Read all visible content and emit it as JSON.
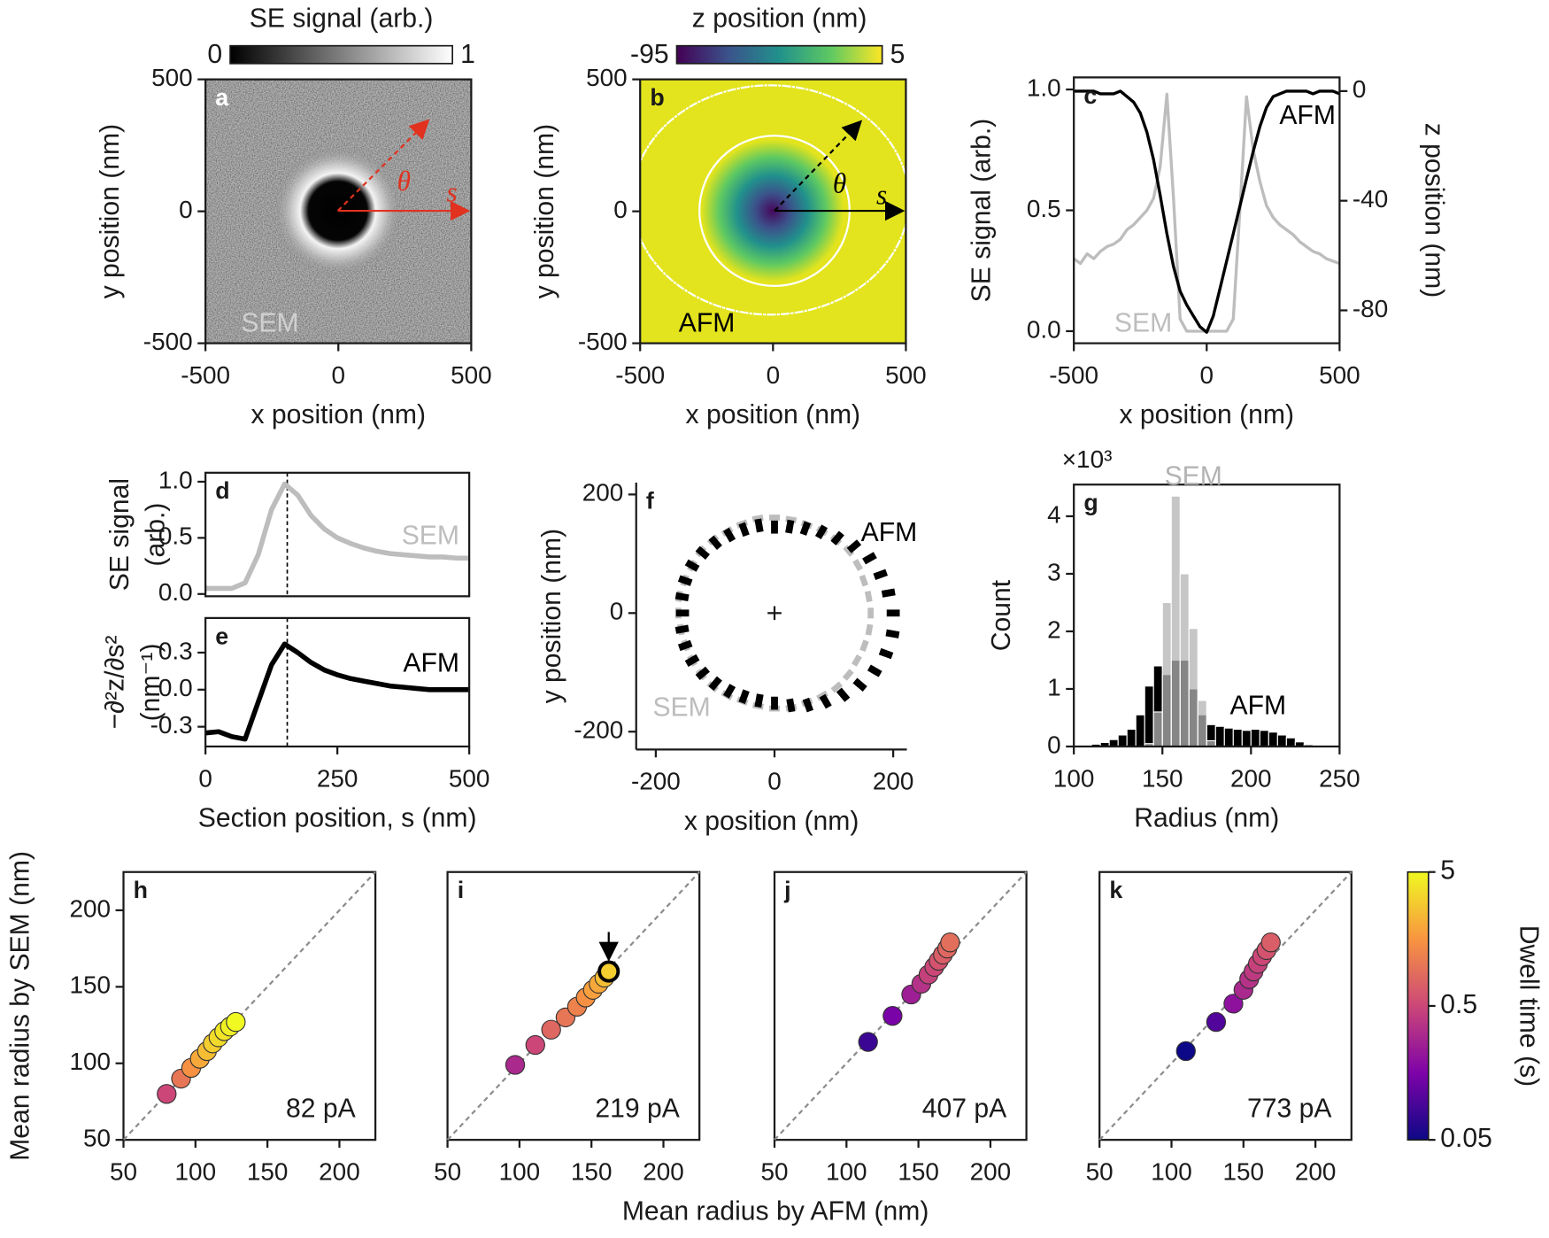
{
  "chart_data": [
    {
      "type": "heatmap",
      "panel_label": "a",
      "colormap": "gray",
      "colorbar": {
        "label": "SE signal (arb.)",
        "lim": [
          0,
          1
        ],
        "ticks": [
          0,
          1
        ]
      },
      "xlabel": "x position (nm)",
      "ylabel": "y position (nm)",
      "xlim": [
        -500,
        500
      ],
      "ylim": [
        -500,
        500
      ],
      "xticks": [
        -500,
        0,
        500
      ],
      "yticks": [
        -500,
        0,
        500
      ],
      "annotations": [
        "θ",
        "s",
        "SEM"
      ]
    },
    {
      "type": "heatmap",
      "panel_label": "b",
      "colormap": "viridis",
      "colorbar": {
        "label": "z position (nm)",
        "lim": [
          -95,
          5
        ],
        "ticks": [
          -95,
          5
        ]
      },
      "xlabel": "x position (nm)",
      "ylabel": "y position (nm)",
      "xlim": [
        -500,
        500
      ],
      "ylim": [
        -500,
        500
      ],
      "xticks": [
        -500,
        0,
        500
      ],
      "yticks": [
        -500,
        0,
        500
      ],
      "annotations": [
        "θ",
        "s",
        "AFM"
      ]
    },
    {
      "type": "line",
      "panel_label": "c",
      "x": [
        -500,
        -475,
        -450,
        -425,
        -400,
        -375,
        -350,
        -325,
        -300,
        -275,
        -250,
        -225,
        -200,
        -175,
        -150,
        -125,
        -100,
        -75,
        -50,
        -25,
        0,
        25,
        50,
        75,
        100,
        125,
        150,
        175,
        200,
        225,
        250,
        275,
        300,
        325,
        350,
        375,
        400,
        425,
        450,
        475,
        500
      ],
      "xlim": [
        -500,
        500
      ],
      "xticks": [
        -500,
        0,
        500
      ],
      "xlabel": "x position (nm)",
      "ylabel": "SE signal (arb.)",
      "ylim": [
        -0.05,
        1.05
      ],
      "yticks": [
        {
          "value": 0,
          "label": "0.0"
        },
        0.5,
        {
          "value": 1,
          "label": "1.0"
        }
      ],
      "y2label": "z position (nm)",
      "y2lim": [
        -92,
        5
      ],
      "y2ticks": [
        0,
        -40,
        -80
      ],
      "series": [
        {
          "name": "SEM",
          "color": "#bdbdbd",
          "values": [
            0.3,
            0.28,
            0.32,
            0.3,
            0.33,
            0.35,
            0.36,
            0.38,
            0.42,
            0.44,
            0.47,
            0.5,
            0.55,
            0.68,
            0.98,
            0.55,
            0.05,
            0,
            0,
            0,
            0,
            0,
            0,
            0,
            0.05,
            0.5,
            0.97,
            0.75,
            0.62,
            0.52,
            0.47,
            0.44,
            0.42,
            0.4,
            0.37,
            0.35,
            0.33,
            0.32,
            0.3,
            0.29,
            0.28
          ]
        },
        {
          "name": "AFM",
          "color": "#000000",
          "axis": "y2",
          "values": [
            0,
            0,
            0,
            0,
            -1,
            -1,
            -1,
            0,
            -2,
            -4,
            -8,
            -15,
            -25,
            -38,
            -52,
            -64,
            -73,
            -78,
            -82,
            -86,
            -88,
            -82,
            -72,
            -62,
            -52,
            -42,
            -32,
            -22,
            -13,
            -6,
            -2,
            -1,
            0,
            0,
            0,
            0,
            -1,
            0,
            0,
            0,
            -1
          ]
        }
      ]
    },
    {
      "type": "line",
      "panel_label": "d",
      "x": [
        0,
        25,
        50,
        75,
        100,
        125,
        150,
        175,
        200,
        225,
        250,
        275,
        300,
        325,
        350,
        375,
        400,
        425,
        450,
        475,
        500
      ],
      "xlim": [
        0,
        500
      ],
      "ylabel": [
        "SE signal",
        "(arb.)"
      ],
      "ylim": [
        -0.02,
        1.08
      ],
      "yticks": [
        {
          "value": 0,
          "label": "0.0"
        },
        0.5,
        {
          "value": 1,
          "label": "1.0"
        }
      ],
      "vline": 155,
      "series": [
        {
          "name": "SEM",
          "color": "#bdbdbd",
          "values": [
            0.05,
            0.05,
            0.05,
            0.1,
            0.35,
            0.75,
            0.98,
            0.88,
            0.7,
            0.58,
            0.5,
            0.45,
            0.41,
            0.38,
            0.36,
            0.35,
            0.34,
            0.33,
            0.33,
            0.32,
            0.32
          ]
        }
      ]
    },
    {
      "type": "line",
      "panel_label": "e",
      "x": [
        0,
        25,
        50,
        75,
        100,
        125,
        150,
        175,
        200,
        225,
        250,
        275,
        300,
        325,
        350,
        375,
        400,
        425,
        450,
        475,
        500
      ],
      "xlim": [
        0,
        500
      ],
      "xticks": [
        0,
        250,
        500
      ],
      "xlabel": "Section position, s (nm)",
      "ylabel": [
        "−∂²z/∂s²",
        "(nm⁻¹)"
      ],
      "ylim": [
        -0.46,
        0.58
      ],
      "yticks": [
        0.3,
        {
          "value": 0,
          "label": "0.0"
        },
        -0.3
      ],
      "vline": 155,
      "series": [
        {
          "name": "AFM",
          "color": "#000000",
          "values": [
            -0.35,
            -0.34,
            -0.38,
            -0.4,
            -0.1,
            0.2,
            0.37,
            0.3,
            0.22,
            0.16,
            0.12,
            0.09,
            0.07,
            0.05,
            0.03,
            0.02,
            0.01,
            0,
            0,
            0,
            0
          ]
        }
      ]
    },
    {
      "type": "polar_segments",
      "panel_label": "f",
      "theta": [
        0,
        10,
        20,
        30,
        40,
        50,
        60,
        70,
        80,
        90,
        100,
        110,
        120,
        130,
        140,
        150,
        160,
        170,
        180,
        190,
        200,
        210,
        220,
        230,
        240,
        250,
        260,
        270,
        280,
        290,
        300,
        310,
        320,
        330,
        340,
        350
      ],
      "xlim": [
        -233,
        223
      ],
      "ylim": [
        -230,
        220
      ],
      "xticks": [
        -200,
        0,
        200
      ],
      "yticks": [
        -200,
        0,
        200
      ],
      "xlabel": "x position (nm)",
      "ylabel": "y position (nm)",
      "series": [
        {
          "name": "SEM",
          "color": "#bdbdbd",
          "values": [
            162,
            161,
            160,
            162,
            163,
            161,
            160,
            159,
            160,
            161,
            162,
            160,
            159,
            161,
            162,
            160,
            161,
            163,
            162,
            160,
            159,
            160,
            161,
            162,
            160,
            158,
            159,
            161,
            162,
            160,
            161,
            163,
            162,
            160,
            161,
            162
          ]
        },
        {
          "name": "AFM",
          "color": "#000000",
          "values": [
            200,
            195,
            190,
            185,
            175,
            165,
            158,
            152,
            148,
            145,
            150,
            150,
            152,
            155,
            158,
            160,
            160,
            158,
            155,
            158,
            160,
            160,
            158,
            155,
            152,
            150,
            150,
            152,
            158,
            165,
            172,
            180,
            188,
            195,
            200,
            202
          ]
        }
      ]
    },
    {
      "type": "histogram",
      "panel_label": "g",
      "bins": [
        100,
        105,
        110,
        115,
        120,
        125,
        130,
        135,
        140,
        145,
        150,
        155,
        160,
        165,
        170,
        175,
        180,
        185,
        190,
        195,
        200,
        205,
        210,
        215,
        220,
        225,
        230,
        235
      ],
      "xlim": [
        100,
        250
      ],
      "ylim": [
        0,
        4.55
      ],
      "xticks": [
        100,
        150,
        200,
        250
      ],
      "yticks": [
        0,
        1,
        2,
        3,
        4
      ],
      "y_multiplier": "×10³",
      "xlabel": "Radius (nm)",
      "ylabel": "Count",
      "series": [
        {
          "name": "AFM",
          "color": "#000000",
          "values": [
            0.01,
            0.02,
            0.04,
            0.07,
            0.12,
            0.2,
            0.3,
            0.55,
            1.05,
            1.4,
            1.25,
            1.5,
            1.5,
            1.0,
            0.55,
            0.38,
            0.35,
            0.32,
            0.3,
            0.28,
            0.3,
            0.28,
            0.25,
            0.2,
            0.15,
            0.08,
            0.03
          ]
        },
        {
          "name": "SEM",
          "color": "#b3b3b3",
          "values": [
            0,
            0,
            0,
            0,
            0,
            0,
            0,
            0,
            0.05,
            0.6,
            2.5,
            4.35,
            3.0,
            2.05,
            0.8,
            0.1,
            0,
            0,
            0,
            0,
            0,
            0,
            0,
            0,
            0,
            0,
            0
          ]
        }
      ]
    },
    {
      "type": "scatter",
      "panel_label": "h",
      "label": "82 pA",
      "x": [
        80,
        90,
        97,
        103,
        108,
        112,
        116,
        120,
        124,
        128
      ],
      "y": [
        80,
        90,
        97,
        103,
        108,
        113,
        117,
        121,
        124,
        127
      ],
      "dwell_time": [
        0.5,
        1,
        1.5,
        2,
        2.5,
        3,
        3.5,
        4,
        4.5,
        5
      ],
      "xlim": [
        50,
        225
      ],
      "ylim": [
        50,
        225
      ],
      "xticks": [
        50,
        100,
        150,
        200
      ],
      "yticks": [
        50,
        100,
        150,
        200
      ],
      "xlabel": "Mean radius by AFM (nm)",
      "ylabel": "Mean radius by SEM (nm)"
    },
    {
      "type": "scatter",
      "panel_label": "i",
      "label": "219 pA",
      "x": [
        97,
        111,
        122,
        132,
        140,
        146,
        151,
        155,
        159,
        162
      ],
      "y": [
        99,
        112,
        122,
        130,
        137,
        143,
        148,
        152,
        156,
        160
      ],
      "dwell_time": [
        0.3,
        0.5,
        0.8,
        1,
        1.2,
        1.5,
        1.8,
        2,
        2.5,
        3
      ],
      "xlim": [
        50,
        225
      ],
      "ylim": [
        50,
        225
      ],
      "xticks": [
        50,
        100,
        150,
        200
      ]
    },
    {
      "type": "scatter",
      "panel_label": "j",
      "label": "407 pA",
      "x": [
        115,
        132,
        145,
        152,
        157,
        161,
        164,
        167,
        170,
        172
      ],
      "y": [
        114,
        131,
        145,
        152,
        158,
        163,
        167,
        171,
        175,
        179
      ],
      "dwell_time": [
        0.08,
        0.15,
        0.25,
        0.35,
        0.45,
        0.5,
        0.6,
        0.7,
        0.8,
        0.9
      ],
      "xlim": [
        50,
        225
      ],
      "ylim": [
        50,
        225
      ],
      "xticks": [
        50,
        100,
        150,
        200
      ]
    },
    {
      "type": "scatter",
      "panel_label": "k",
      "label": "773 pA",
      "x": [
        110,
        131,
        143,
        150,
        154,
        157,
        160,
        163,
        166,
        169
      ],
      "y": [
        108,
        127,
        139,
        148,
        155,
        160,
        165,
        170,
        174,
        179
      ],
      "dwell_time": [
        0.05,
        0.1,
        0.2,
        0.3,
        0.35,
        0.4,
        0.45,
        0.5,
        0.6,
        0.7
      ],
      "xlim": [
        50,
        225
      ],
      "ylim": [
        50,
        225
      ],
      "xticks": [
        50,
        100,
        150,
        200
      ],
      "colorbar": {
        "label": "Dwell time (s)",
        "lim": [
          0.05,
          5
        ],
        "ticks": [
          0.05,
          0.5,
          5
        ],
        "scale": "log",
        "colormap": "plasma"
      }
    }
  ]
}
